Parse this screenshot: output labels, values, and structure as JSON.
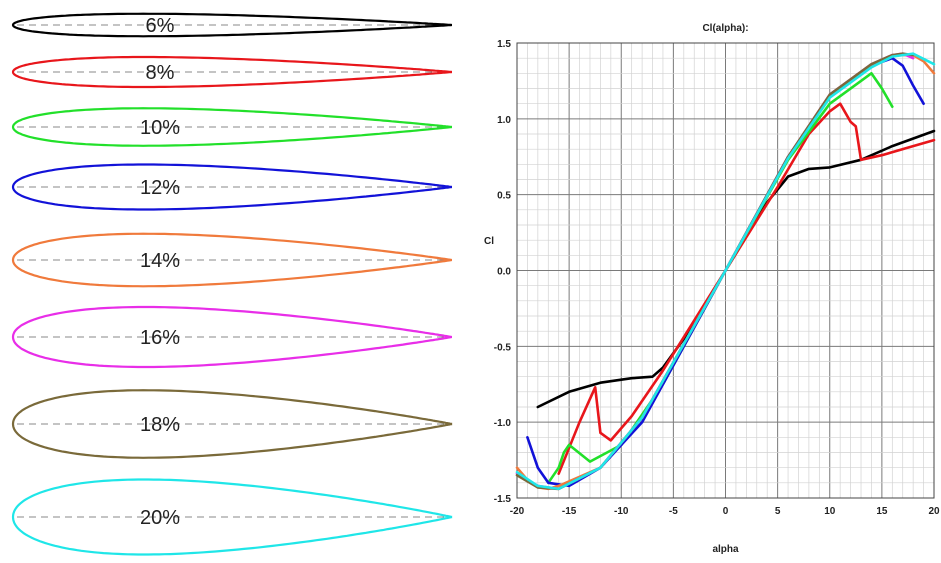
{
  "airfoils": [
    {
      "label": "6%",
      "thickness": 0.06,
      "color": "#000000"
    },
    {
      "label": "8%",
      "thickness": 0.08,
      "color": "#e8161b"
    },
    {
      "label": "10%",
      "thickness": 0.1,
      "color": "#22e02a"
    },
    {
      "label": "12%",
      "thickness": 0.12,
      "color": "#1212d8"
    },
    {
      "label": "14%",
      "thickness": 0.14,
      "color": "#f07a3c"
    },
    {
      "label": "16%",
      "thickness": 0.16,
      "color": "#e82ee8"
    },
    {
      "label": "18%",
      "thickness": 0.18,
      "color": "#7a6a3a"
    },
    {
      "label": "20%",
      "thickness": 0.2,
      "color": "#1fe6e8"
    }
  ],
  "chart_data": {
    "type": "line",
    "title": "Cl(alpha):",
    "xlabel": "alpha",
    "ylabel": "Cl",
    "xlim": [
      -20,
      20
    ],
    "ylim": [
      -1.5,
      1.5
    ],
    "xticks": [
      -20,
      -15,
      -10,
      -5,
      0,
      5,
      10,
      15,
      20
    ],
    "xtick_labels": [
      "-20",
      "-15",
      "-10",
      "-5",
      "0",
      "5",
      "10",
      "15",
      "20"
    ],
    "yticks": [
      -1.5,
      -1.0,
      -0.5,
      0.0,
      0.5,
      1.0,
      1.5
    ],
    "ytick_labels": [
      "-1.5",
      "-1.0",
      "-0.5",
      "0.0",
      "0.5",
      "1.0",
      "1.5"
    ],
    "grid": true,
    "series": [
      {
        "color": "#000000",
        "x": [
          -18,
          -15,
          -12,
          -9,
          -7,
          -6,
          -4,
          0,
          4,
          6,
          8,
          10,
          13,
          16,
          20
        ],
        "y": [
          -0.9,
          -0.8,
          -0.74,
          -0.71,
          -0.7,
          -0.64,
          -0.45,
          0,
          0.45,
          0.62,
          0.67,
          0.68,
          0.73,
          0.82,
          0.92
        ]
      },
      {
        "color": "#e8161b",
        "x": [
          -16,
          -14,
          -12.5,
          -12,
          -11,
          -9,
          -6,
          0,
          5,
          8,
          10,
          11,
          12,
          12.5,
          13,
          15,
          18,
          20
        ],
        "y": [
          -1.34,
          -1.0,
          -0.77,
          -1.07,
          -1.12,
          -0.96,
          -0.66,
          0,
          0.55,
          0.9,
          1.05,
          1.1,
          0.98,
          0.95,
          0.73,
          0.76,
          0.82,
          0.86
        ]
      },
      {
        "color": "#22e02a",
        "x": [
          -17,
          -16,
          -15.5,
          -15,
          -13,
          -10,
          -6,
          0,
          6,
          10,
          13,
          14,
          15,
          16
        ],
        "y": [
          -1.4,
          -1.3,
          -1.2,
          -1.15,
          -1.26,
          -1.15,
          -0.75,
          0,
          0.73,
          1.1,
          1.25,
          1.3,
          1.2,
          1.08
        ]
      },
      {
        "color": "#1212d8",
        "x": [
          -19,
          -18,
          -17,
          -15,
          -12,
          -8,
          0,
          6,
          10,
          14,
          16,
          17,
          18,
          19
        ],
        "y": [
          -1.1,
          -1.3,
          -1.4,
          -1.42,
          -1.3,
          -1.0,
          0,
          0.75,
          1.15,
          1.35,
          1.4,
          1.35,
          1.22,
          1.1
        ]
      },
      {
        "color": "#f07a3c",
        "x": [
          -20,
          -19,
          -18,
          -17,
          -16,
          -12,
          -8,
          0,
          6,
          10,
          14,
          16,
          18,
          19,
          20
        ],
        "y": [
          -1.3,
          -1.38,
          -1.43,
          -1.44,
          -1.42,
          -1.3,
          -0.97,
          0,
          0.74,
          1.15,
          1.35,
          1.42,
          1.42,
          1.38,
          1.3
        ]
      },
      {
        "color": "#e82ee8",
        "x": [
          -20,
          -18,
          -16,
          -12,
          -8,
          0,
          6,
          10,
          14,
          16,
          17,
          18
        ],
        "y": [
          -1.34,
          -1.42,
          -1.44,
          -1.3,
          -0.97,
          0,
          0.75,
          1.16,
          1.36,
          1.42,
          1.43,
          1.4
        ]
      },
      {
        "color": "#7a6a3a",
        "x": [
          -20,
          -18,
          -16,
          -12,
          -8,
          0,
          6,
          10,
          14,
          16,
          17,
          18
        ],
        "y": [
          -1.35,
          -1.43,
          -1.44,
          -1.3,
          -0.97,
          0,
          0.75,
          1.16,
          1.36,
          1.42,
          1.43,
          1.42
        ]
      },
      {
        "color": "#1fe6e8",
        "x": [
          -20,
          -18,
          -16,
          -12,
          -8,
          0,
          6,
          10,
          14,
          16,
          18,
          20
        ],
        "y": [
          -1.33,
          -1.42,
          -1.44,
          -1.3,
          -0.97,
          0,
          0.74,
          1.14,
          1.34,
          1.41,
          1.43,
          1.36
        ]
      }
    ]
  }
}
